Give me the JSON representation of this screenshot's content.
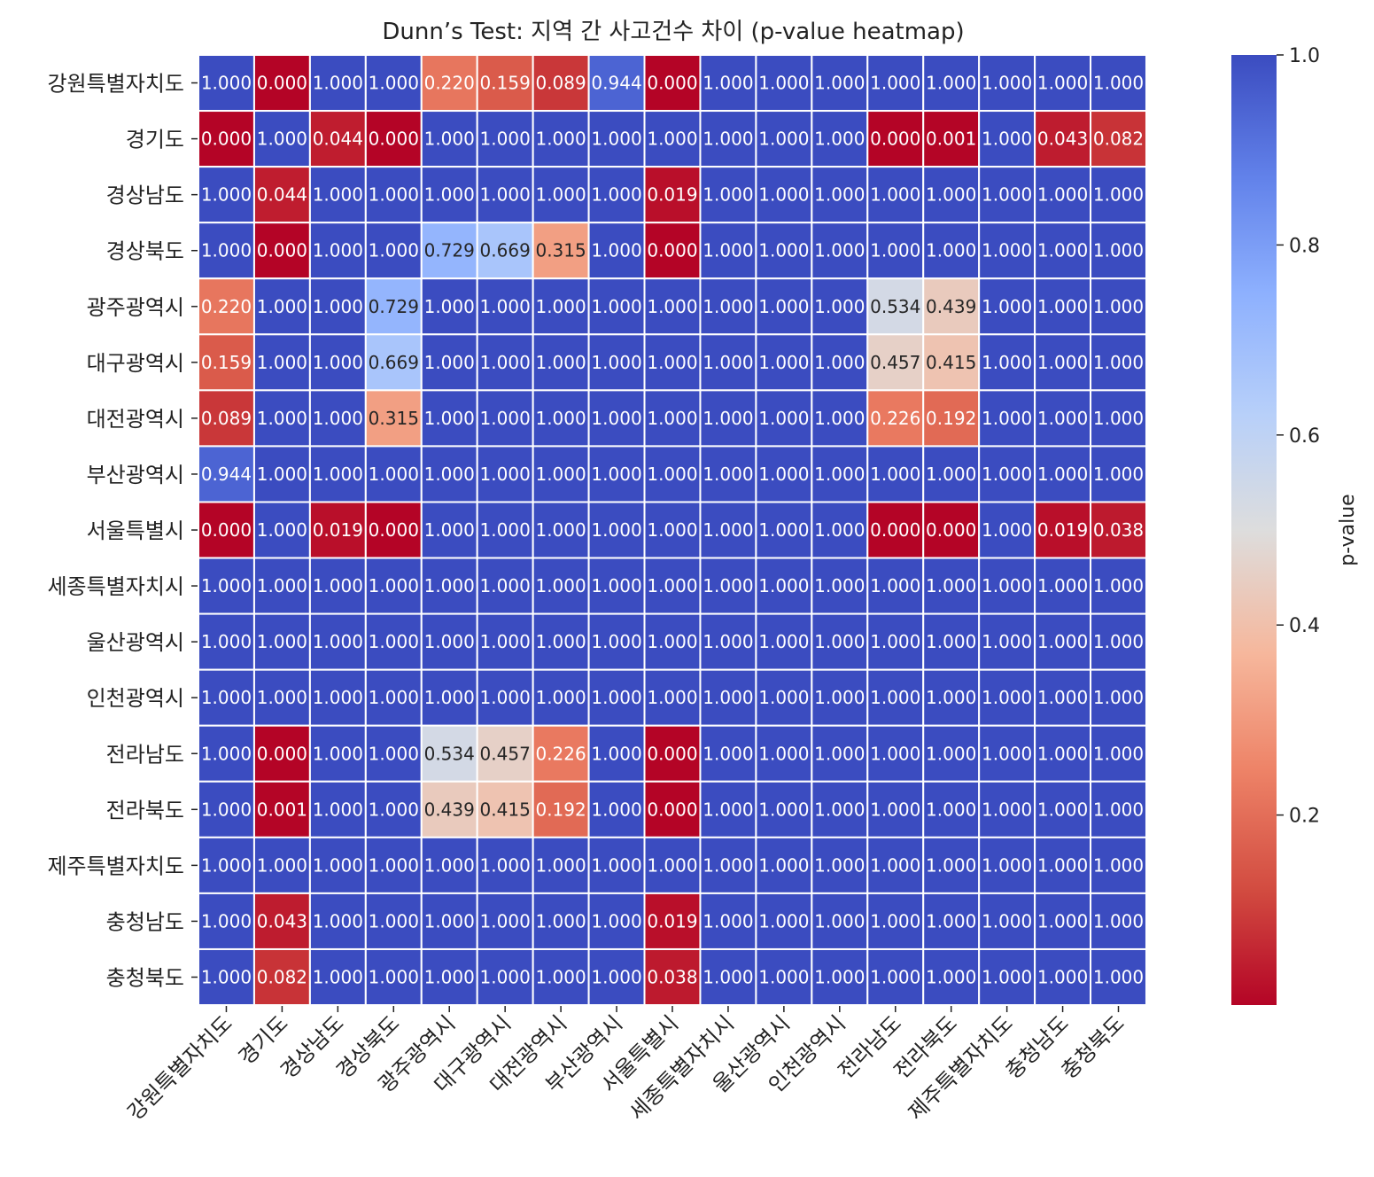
{
  "chart_data": {
    "type": "heatmap",
    "title": "Dunn’s Test: 지역 간 사고건수 차이 (p-value heatmap)",
    "xlabel": "",
    "ylabel": "",
    "categories": [
      "강원특별자치도",
      "경기도",
      "경상남도",
      "경상북도",
      "광주광역시",
      "대구광역시",
      "대전광역시",
      "부산광역시",
      "서울특별시",
      "세종특별자치시",
      "울산광역시",
      "인천광역시",
      "전라남도",
      "전라북도",
      "제주특별자치도",
      "충청남도",
      "충청북도"
    ],
    "values": [
      [
        1.0,
        0.0,
        1.0,
        1.0,
        0.22,
        0.159,
        0.089,
        0.944,
        0.0,
        1.0,
        1.0,
        1.0,
        1.0,
        1.0,
        1.0,
        1.0,
        1.0
      ],
      [
        0.0,
        1.0,
        0.044,
        0.0,
        1.0,
        1.0,
        1.0,
        1.0,
        1.0,
        1.0,
        1.0,
        1.0,
        0.0,
        0.001,
        1.0,
        0.043,
        0.082
      ],
      [
        1.0,
        0.044,
        1.0,
        1.0,
        1.0,
        1.0,
        1.0,
        1.0,
        0.019,
        1.0,
        1.0,
        1.0,
        1.0,
        1.0,
        1.0,
        1.0,
        1.0
      ],
      [
        1.0,
        0.0,
        1.0,
        1.0,
        0.729,
        0.669,
        0.315,
        1.0,
        0.0,
        1.0,
        1.0,
        1.0,
        1.0,
        1.0,
        1.0,
        1.0,
        1.0
      ],
      [
        0.22,
        1.0,
        1.0,
        0.729,
        1.0,
        1.0,
        1.0,
        1.0,
        1.0,
        1.0,
        1.0,
        1.0,
        0.534,
        0.439,
        1.0,
        1.0,
        1.0
      ],
      [
        0.159,
        1.0,
        1.0,
        0.669,
        1.0,
        1.0,
        1.0,
        1.0,
        1.0,
        1.0,
        1.0,
        1.0,
        0.457,
        0.415,
        1.0,
        1.0,
        1.0
      ],
      [
        0.089,
        1.0,
        1.0,
        0.315,
        1.0,
        1.0,
        1.0,
        1.0,
        1.0,
        1.0,
        1.0,
        1.0,
        0.226,
        0.192,
        1.0,
        1.0,
        1.0
      ],
      [
        0.944,
        1.0,
        1.0,
        1.0,
        1.0,
        1.0,
        1.0,
        1.0,
        1.0,
        1.0,
        1.0,
        1.0,
        1.0,
        1.0,
        1.0,
        1.0,
        1.0
      ],
      [
        0.0,
        1.0,
        0.019,
        0.0,
        1.0,
        1.0,
        1.0,
        1.0,
        1.0,
        1.0,
        1.0,
        1.0,
        0.0,
        0.0,
        1.0,
        0.019,
        0.038
      ],
      [
        1.0,
        1.0,
        1.0,
        1.0,
        1.0,
        1.0,
        1.0,
        1.0,
        1.0,
        1.0,
        1.0,
        1.0,
        1.0,
        1.0,
        1.0,
        1.0,
        1.0
      ],
      [
        1.0,
        1.0,
        1.0,
        1.0,
        1.0,
        1.0,
        1.0,
        1.0,
        1.0,
        1.0,
        1.0,
        1.0,
        1.0,
        1.0,
        1.0,
        1.0,
        1.0
      ],
      [
        1.0,
        1.0,
        1.0,
        1.0,
        1.0,
        1.0,
        1.0,
        1.0,
        1.0,
        1.0,
        1.0,
        1.0,
        1.0,
        1.0,
        1.0,
        1.0,
        1.0
      ],
      [
        1.0,
        0.0,
        1.0,
        1.0,
        0.534,
        0.457,
        0.226,
        1.0,
        0.0,
        1.0,
        1.0,
        1.0,
        1.0,
        1.0,
        1.0,
        1.0,
        1.0
      ],
      [
        1.0,
        0.001,
        1.0,
        1.0,
        0.439,
        0.415,
        0.192,
        1.0,
        0.0,
        1.0,
        1.0,
        1.0,
        1.0,
        1.0,
        1.0,
        1.0,
        1.0
      ],
      [
        1.0,
        1.0,
        1.0,
        1.0,
        1.0,
        1.0,
        1.0,
        1.0,
        1.0,
        1.0,
        1.0,
        1.0,
        1.0,
        1.0,
        1.0,
        1.0,
        1.0
      ],
      [
        1.0,
        0.043,
        1.0,
        1.0,
        1.0,
        1.0,
        1.0,
        1.0,
        0.019,
        1.0,
        1.0,
        1.0,
        1.0,
        1.0,
        1.0,
        1.0,
        1.0
      ],
      [
        1.0,
        0.082,
        1.0,
        1.0,
        1.0,
        1.0,
        1.0,
        1.0,
        0.038,
        1.0,
        1.0,
        1.0,
        1.0,
        1.0,
        1.0,
        1.0,
        1.0
      ]
    ],
    "colorbar": {
      "label": "p-value",
      "ticks": [
        "0.2",
        "0.4",
        "0.6",
        "0.8",
        "1.0"
      ],
      "range": [
        0.0,
        1.0
      ],
      "colormap": "coolwarm_r",
      "low_color": "#b40426",
      "mid_color": "#dddddd",
      "high_color": "#3b4cc0"
    },
    "grid": true,
    "annotated": true
  }
}
